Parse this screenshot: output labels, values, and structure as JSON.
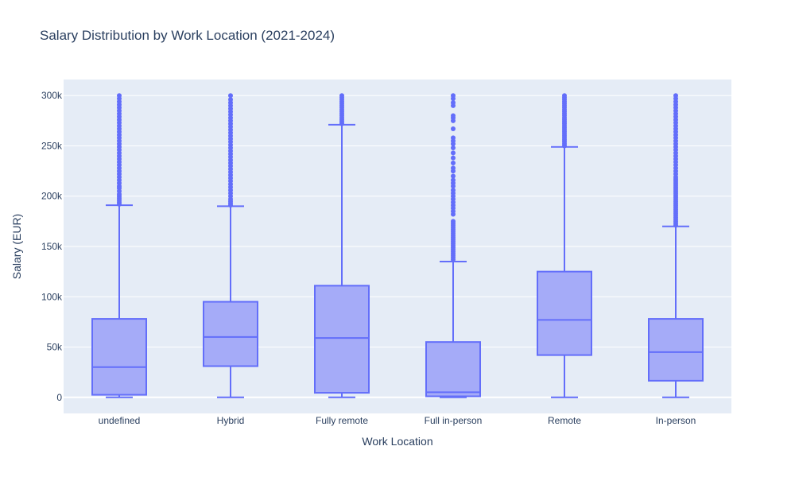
{
  "chart_data": {
    "type": "box",
    "title": "Salary Distribution by Work Location (2021-2024)",
    "xlabel": "Work Location",
    "ylabel": "Salary (EUR)",
    "categories": [
      "undefined",
      "Hybrid",
      "Fully remote",
      "Full in-person",
      "Remote",
      "In-person"
    ],
    "y_ticks": [
      0,
      50000,
      100000,
      150000,
      200000,
      250000,
      300000
    ],
    "y_tick_labels": [
      "0",
      "50k",
      "100k",
      "150k",
      "200k",
      "250k",
      "300k"
    ],
    "ylim": [
      -16000,
      316000
    ],
    "grid": true,
    "colors": {
      "plot_bg": "#e5ecf6",
      "grid": "#ffffff",
      "box_line": "#636efa",
      "box_fill": "#a5abf8",
      "text": "#2a3f5f"
    },
    "boxes": [
      {
        "category": "undefined",
        "min": 0,
        "q1": 2500,
        "median": 30000,
        "q3": 78000,
        "upper_fence": 191000,
        "outliers": [
          192000,
          194000,
          196000,
          198000,
          200000,
          202000,
          205000,
          208000,
          210000,
          213000,
          216000,
          219000,
          222000,
          225000,
          228000,
          231000,
          234000,
          237000,
          240000,
          243000,
          246000,
          249000,
          252000,
          255000,
          258000,
          261000,
          264000,
          267000,
          270000,
          273000,
          276000,
          279000,
          282000,
          285000,
          288000,
          291000,
          294000,
          297000,
          300000
        ]
      },
      {
        "category": "Hybrid",
        "min": 0,
        "q1": 31000,
        "median": 60000,
        "q3": 95000,
        "upper_fence": 190000,
        "outliers": [
          191000,
          193000,
          195000,
          197000,
          200000,
          203000,
          206000,
          209000,
          212000,
          215000,
          218000,
          221000,
          224000,
          227000,
          230000,
          233000,
          236000,
          239000,
          242000,
          245000,
          248000,
          251000,
          254000,
          257000,
          260000,
          263000,
          266000,
          269000,
          272000,
          275000,
          278000,
          281000,
          284000,
          287000,
          290000,
          293000,
          296000,
          300000
        ]
      },
      {
        "category": "Fully remote",
        "min": 0,
        "q1": 4500,
        "median": 59000,
        "q3": 111000,
        "upper_fence": 271000,
        "outliers": [
          272000,
          274000,
          276000,
          278000,
          280000,
          282000,
          284000,
          286000,
          288000,
          290000,
          292000,
          294000,
          296000,
          298000,
          300000
        ]
      },
      {
        "category": "Full in-person",
        "min": 0,
        "q1": 1000,
        "median": 5000,
        "q3": 55000,
        "upper_fence": 135000,
        "outliers": [
          137000,
          139000,
          141000,
          143000,
          145000,
          147000,
          149000,
          151000,
          153000,
          155000,
          157000,
          159000,
          161000,
          163000,
          165000,
          167000,
          169000,
          171000,
          173000,
          175000,
          182000,
          185000,
          188000,
          191000,
          194000,
          197000,
          200000,
          203000,
          206000,
          210000,
          213000,
          216000,
          220000,
          225000,
          228000,
          233000,
          238000,
          243000,
          248000,
          252000,
          255000,
          258000,
          267000,
          275000,
          278000,
          280000,
          290000,
          293000,
          297000,
          300000
        ]
      },
      {
        "category": "Remote",
        "min": 0,
        "q1": 42000,
        "median": 77000,
        "q3": 125000,
        "upper_fence": 249000,
        "outliers": [
          250000,
          252000,
          254000,
          256000,
          258000,
          260000,
          262000,
          264000,
          266000,
          268000,
          270000,
          272000,
          274000,
          276000,
          278000,
          280000,
          282000,
          284000,
          286000,
          288000,
          290000,
          292000,
          294000,
          296000,
          298000,
          300000
        ]
      },
      {
        "category": "In-person",
        "min": 0,
        "q1": 16500,
        "median": 45000,
        "q3": 78000,
        "upper_fence": 170000,
        "outliers": [
          171000,
          173000,
          175000,
          177000,
          179000,
          181000,
          183000,
          185000,
          187000,
          189000,
          191000,
          193000,
          195000,
          197000,
          199000,
          201000,
          203000,
          205000,
          207000,
          209000,
          211000,
          213000,
          215000,
          217000,
          219000,
          222000,
          225000,
          228000,
          231000,
          234000,
          237000,
          240000,
          243000,
          246000,
          249000,
          252000,
          255000,
          258000,
          261000,
          264000,
          267000,
          270000,
          273000,
          276000,
          279000,
          282000,
          285000,
          288000,
          291000,
          294000,
          297000,
          300000
        ]
      }
    ]
  }
}
